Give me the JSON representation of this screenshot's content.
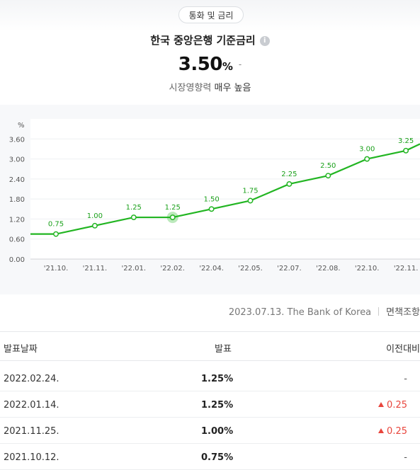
{
  "header": {
    "category_pill": "통화 및 금리",
    "title": "한국 중앙은행 기준금리",
    "rate_value": "3.50",
    "rate_unit": "%",
    "rate_change": "-",
    "influence_label": "시장영향력",
    "influence_level": "매우 높음"
  },
  "chart_data": {
    "type": "line",
    "ylabel": "%",
    "ylim": [
      0,
      4.2
    ],
    "yticks": [
      "0.00",
      "0.60",
      "1.20",
      "1.80",
      "2.40",
      "3.00",
      "3.60"
    ],
    "categories": [
      "'21.10.",
      "'21.11.",
      "'22.01.",
      "'22.02.",
      "'22.04.",
      "'22.05.",
      "'22.07.",
      "'22.08.",
      "'22.10.",
      "'22.11."
    ],
    "values": [
      0.75,
      1.0,
      1.25,
      1.25,
      1.5,
      1.75,
      2.25,
      2.5,
      3.0,
      3.25
    ],
    "data_labels": [
      "0.75",
      "1.00",
      "1.25",
      "1.25",
      "1.50",
      "1.75",
      "2.25",
      "2.50",
      "3.00",
      "3.25"
    ],
    "highlight_index": 3,
    "line_color": "#22b522",
    "grid": true
  },
  "source": {
    "text": "2023.07.13. The Bank of Korea",
    "disclaimer": "면책조항"
  },
  "table": {
    "headers": [
      "발표날짜",
      "발표",
      "이전대비"
    ],
    "rows": [
      {
        "date": "2022.02.24.",
        "value": "1.25%",
        "change": "-",
        "direction": "none"
      },
      {
        "date": "2022.01.14.",
        "value": "1.25%",
        "change": "0.25",
        "direction": "up"
      },
      {
        "date": "2021.11.25.",
        "value": "1.00%",
        "change": "0.25",
        "direction": "up"
      },
      {
        "date": "2021.10.12.",
        "value": "0.75%",
        "change": "-",
        "direction": "none"
      }
    ]
  }
}
